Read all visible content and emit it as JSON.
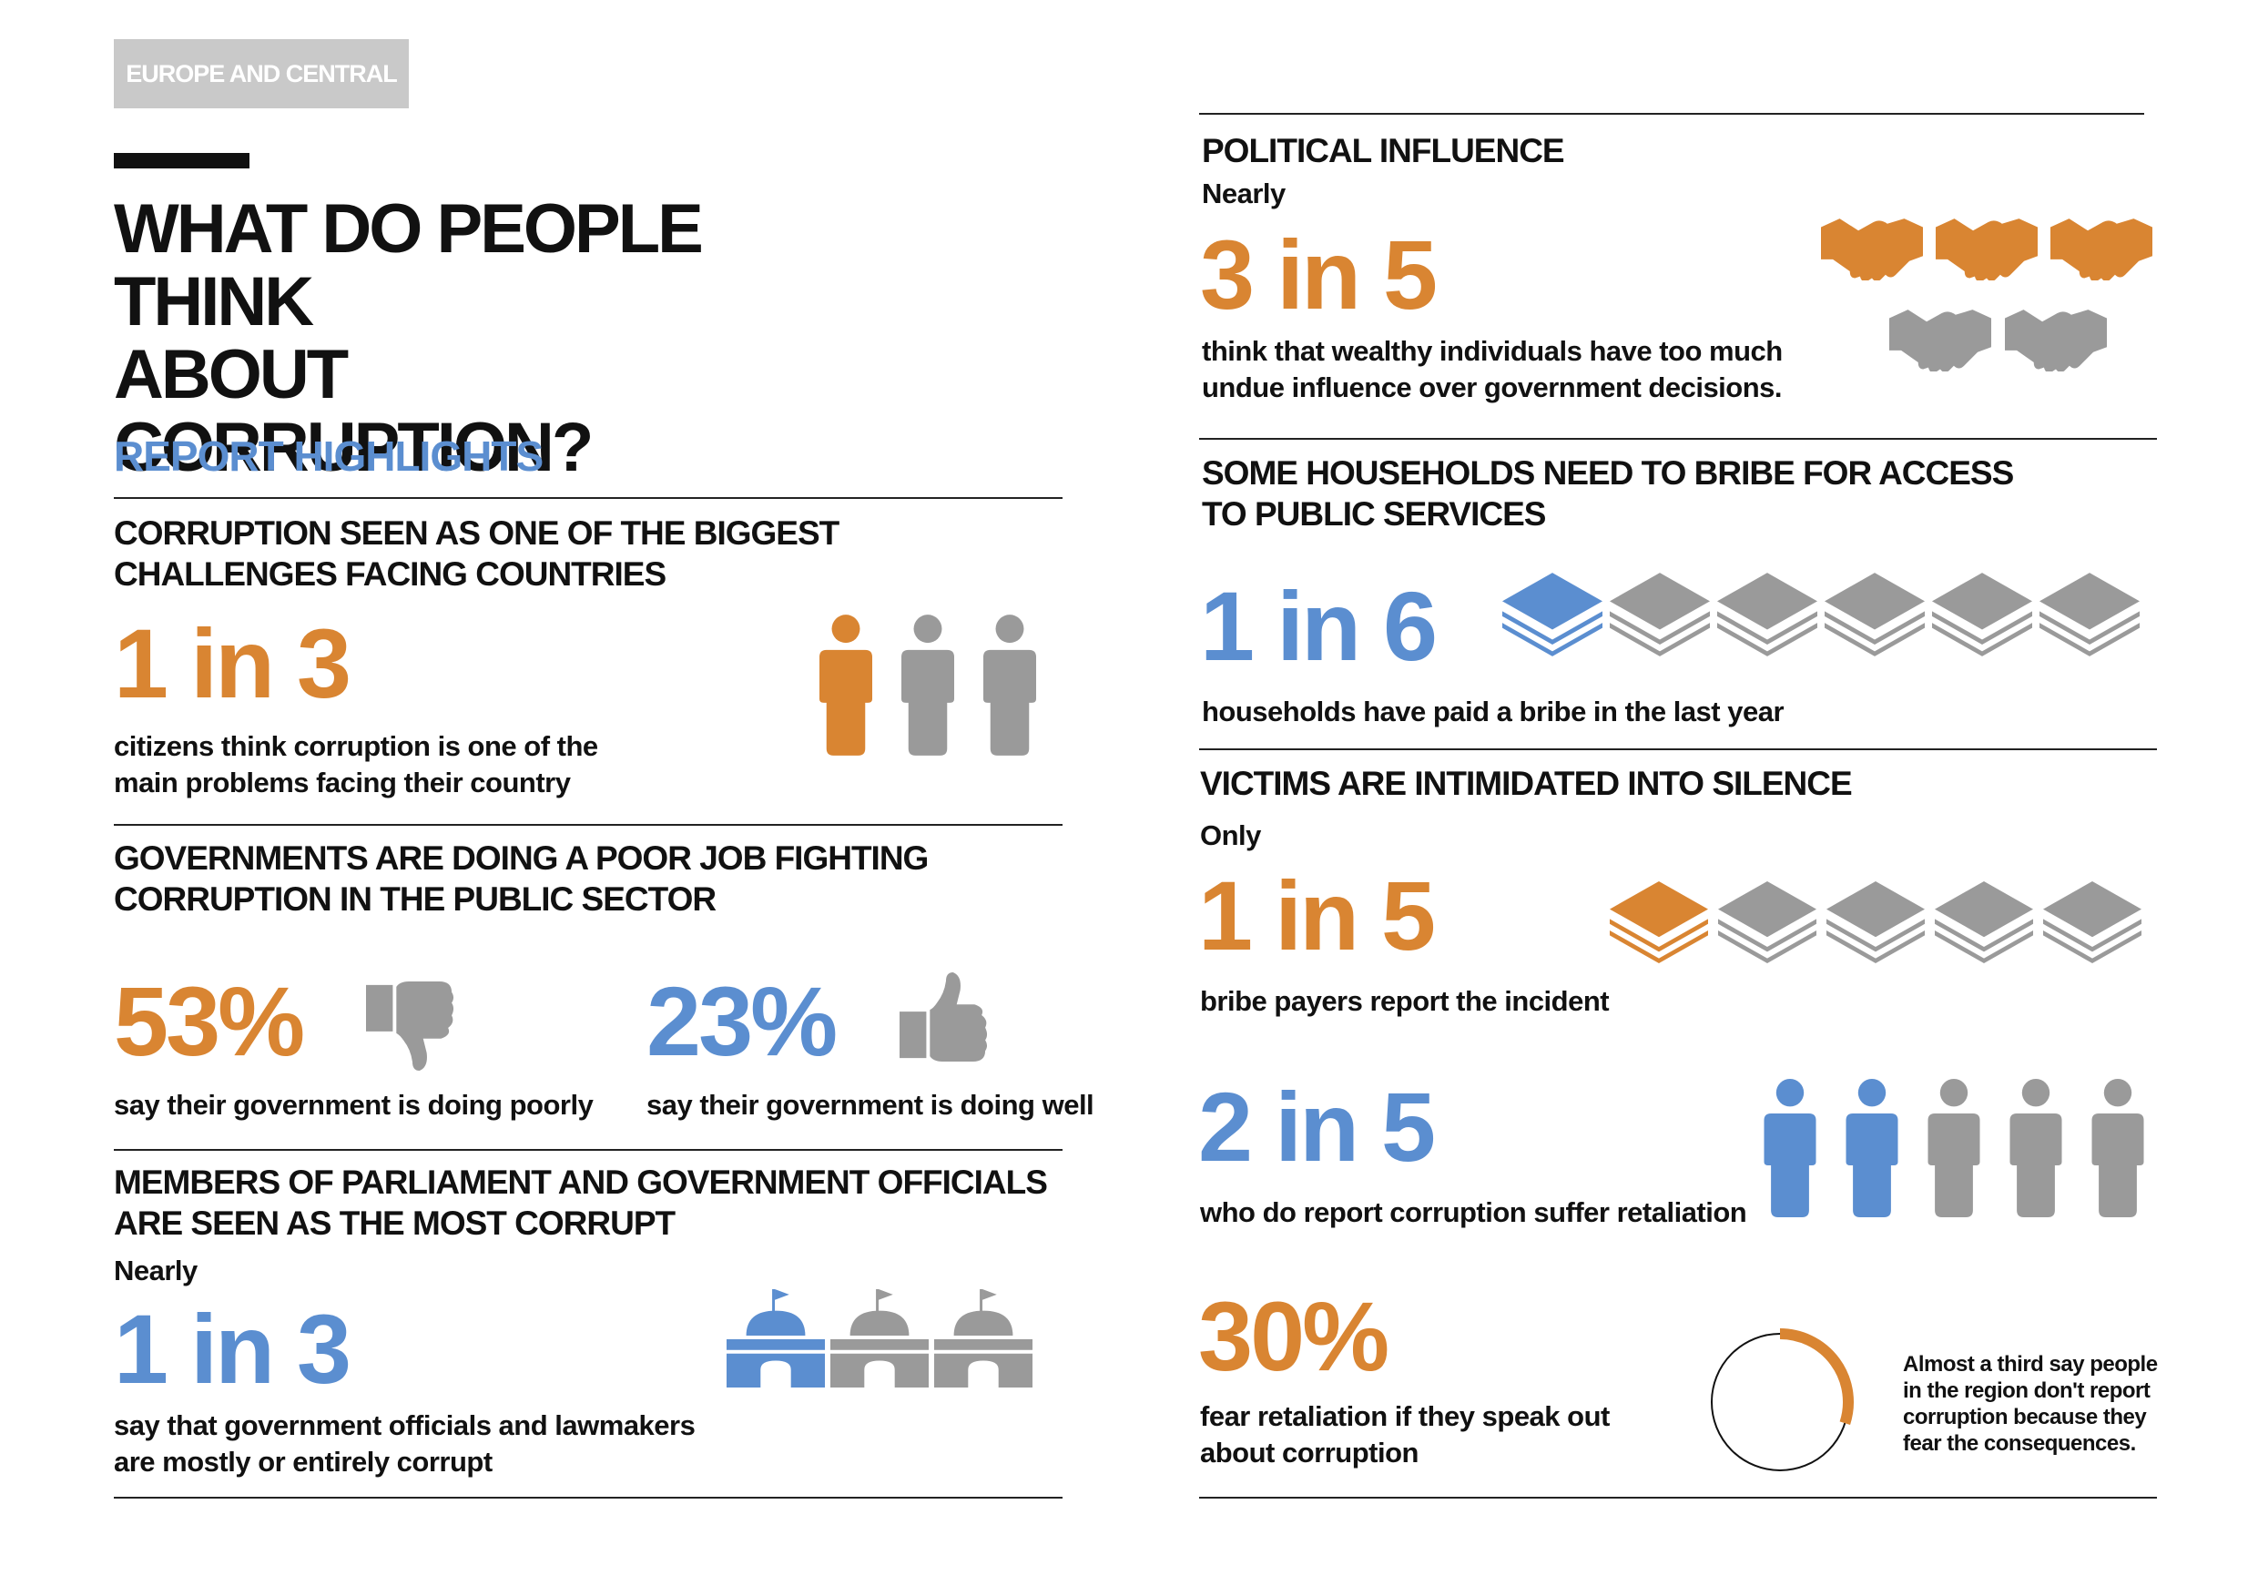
{
  "header": {
    "region_tag": "EUROPE AND CENTRAL ASIA",
    "title_line1": "WHAT DO PEOPLE THINK",
    "title_line2": "ABOUT CORRUPTION?",
    "section_label": "REPORT HIGHLIGHTS"
  },
  "left": {
    "challenges": {
      "heading_line1": "CORRUPTION SEEN AS ONE OF THE BIGGEST",
      "heading_line2": "CHALLENGES FACING COUNTRIES",
      "stat": "1 in 3",
      "text_line1": "citizens think corruption is one of the",
      "text_line2": "main problems facing their country",
      "icon": "person-icon",
      "highlighted": 1,
      "total": 3
    },
    "governments": {
      "heading_line1": "GOVERNMENTS ARE DOING A POOR JOB FIGHTING",
      "heading_line2": "CORRUPTION IN THE PUBLIC SECTOR",
      "poor_stat": "53%",
      "poor_text": "say their government is doing poorly",
      "poor_icon": "thumbs-down-icon",
      "well_stat": "23%",
      "well_text": "say their government is doing well",
      "well_icon": "thumbs-up-icon"
    },
    "parliament": {
      "heading_line1": "MEMBERS OF PARLIAMENT AND GOVERNMENT OFFICIALS",
      "heading_line2": "ARE SEEN AS THE MOST CORRUPT",
      "qualifier": "Nearly",
      "stat": "1 in 3",
      "text_line1": "say that government officials and lawmakers",
      "text_line2": "are mostly or entirely corrupt",
      "icon": "parliament-building-icon",
      "highlighted": 1,
      "total": 3
    }
  },
  "right": {
    "political": {
      "heading": "POLITICAL INFLUENCE",
      "qualifier": "Nearly",
      "stat": "3 in 5",
      "text_line1": "think that wealthy individuals have too much",
      "text_line2": "undue influence over government decisions.",
      "icon": "handshake-icon",
      "highlighted": 3,
      "total": 5
    },
    "households": {
      "heading_line1": "SOME HOUSEHOLDS NEED TO BRIBE FOR ACCESS",
      "heading_line2": "TO PUBLIC SERVICES",
      "stat": "1 in 6",
      "text": "households have paid a bribe in the last year",
      "icon": "money-stack-icon",
      "highlighted": 1,
      "total": 6
    },
    "victims": {
      "heading": "VICTIMS ARE INTIMIDATED INTO SILENCE",
      "qualifier": "Only",
      "stat": "1 in 5",
      "text": "bribe payers report the incident",
      "icon": "money-stack-icon",
      "highlighted": 1,
      "total": 5
    },
    "retaliation": {
      "stat": "2 in 5",
      "text": "who do report corruption suffer retaliation",
      "icon": "person-icon",
      "highlighted": 2,
      "total": 5
    },
    "fear": {
      "stat": "30%",
      "text_line1": "fear retaliation if they speak out",
      "text_line2": "about corruption",
      "ring_fraction": 0.3,
      "note_line1": "Almost a third say people",
      "note_line2": "in the region don't report",
      "note_line3": "corruption because they",
      "note_line4": "fear the consequences."
    }
  },
  "colors": {
    "orange": "#d98532",
    "blue": "#5b8ed0",
    "gray": "#9a9a9a",
    "tag_gray": "#c9c9c9"
  }
}
